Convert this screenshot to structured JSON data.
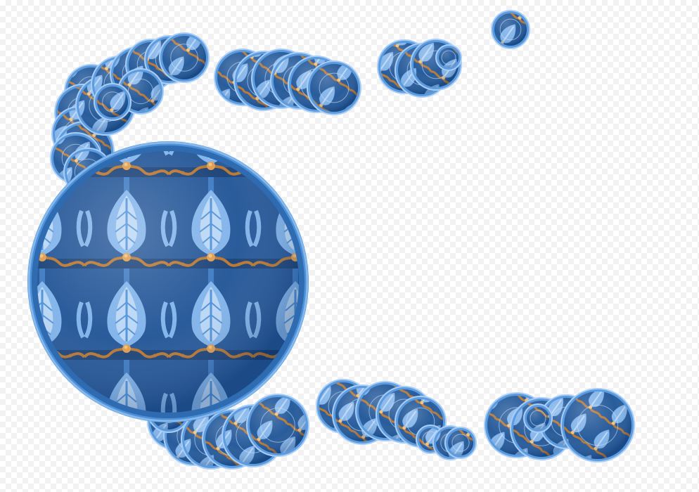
{
  "image": {
    "subject": "blue-ornament-discs",
    "palette": {
      "deep_blue": "#1d4f8f",
      "mid_blue": "#2f6db3",
      "light_blue": "#7fb2ea",
      "pale_blue": "#b9d6f5",
      "rim_blue": "#4d90d8",
      "ornament_orange": "#b8742c",
      "ornament_highlight": "#f0c078",
      "checker_light": "#ffffff",
      "checker_dark": "#f2f2f2"
    }
  }
}
